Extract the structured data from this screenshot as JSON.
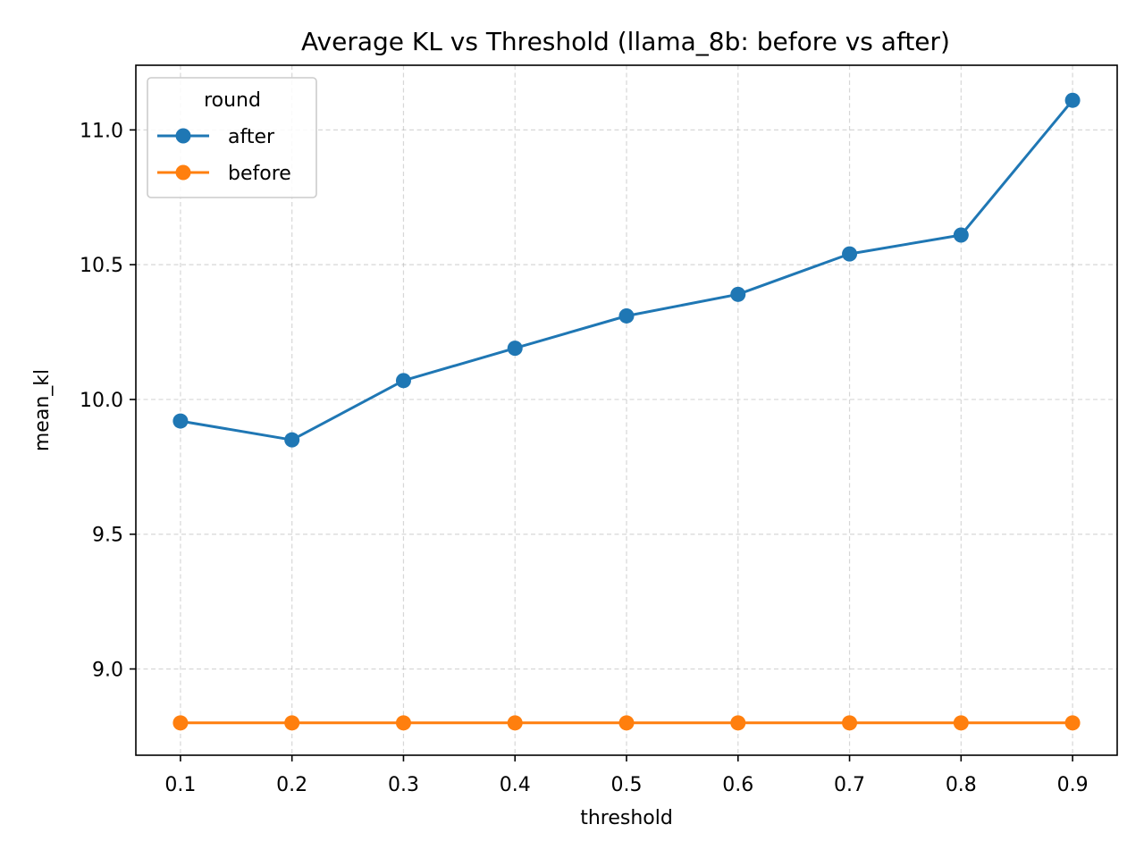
{
  "chart_data": {
    "type": "line",
    "title": "Average KL vs Threshold (llama_8b: before vs after)",
    "xlabel": "threshold",
    "ylabel": "mean_kl",
    "x": [
      0.1,
      0.2,
      0.3,
      0.4,
      0.5,
      0.6,
      0.7,
      0.8,
      0.9
    ],
    "x_tick_labels": [
      "0.1",
      "0.2",
      "0.3",
      "0.4",
      "0.5",
      "0.6",
      "0.7",
      "0.8",
      "0.9"
    ],
    "xlim": [
      0.06,
      0.94
    ],
    "ylim": [
      8.68,
      11.24
    ],
    "y_ticks": [
      9.0,
      9.5,
      10.0,
      10.5,
      11.0
    ],
    "y_tick_labels": [
      "9.0",
      "9.5",
      "10.0",
      "10.5",
      "11.0"
    ],
    "grid": true,
    "legend": {
      "title": "round",
      "placement": "top-left"
    },
    "series": [
      {
        "name": "after",
        "color": "#1f77b4",
        "values": [
          9.92,
          9.85,
          10.07,
          10.19,
          10.31,
          10.39,
          10.54,
          10.61,
          11.11
        ]
      },
      {
        "name": "before",
        "color": "#ff7f0e",
        "values": [
          8.8,
          8.8,
          8.8,
          8.8,
          8.8,
          8.8,
          8.8,
          8.8,
          8.8
        ]
      }
    ]
  }
}
